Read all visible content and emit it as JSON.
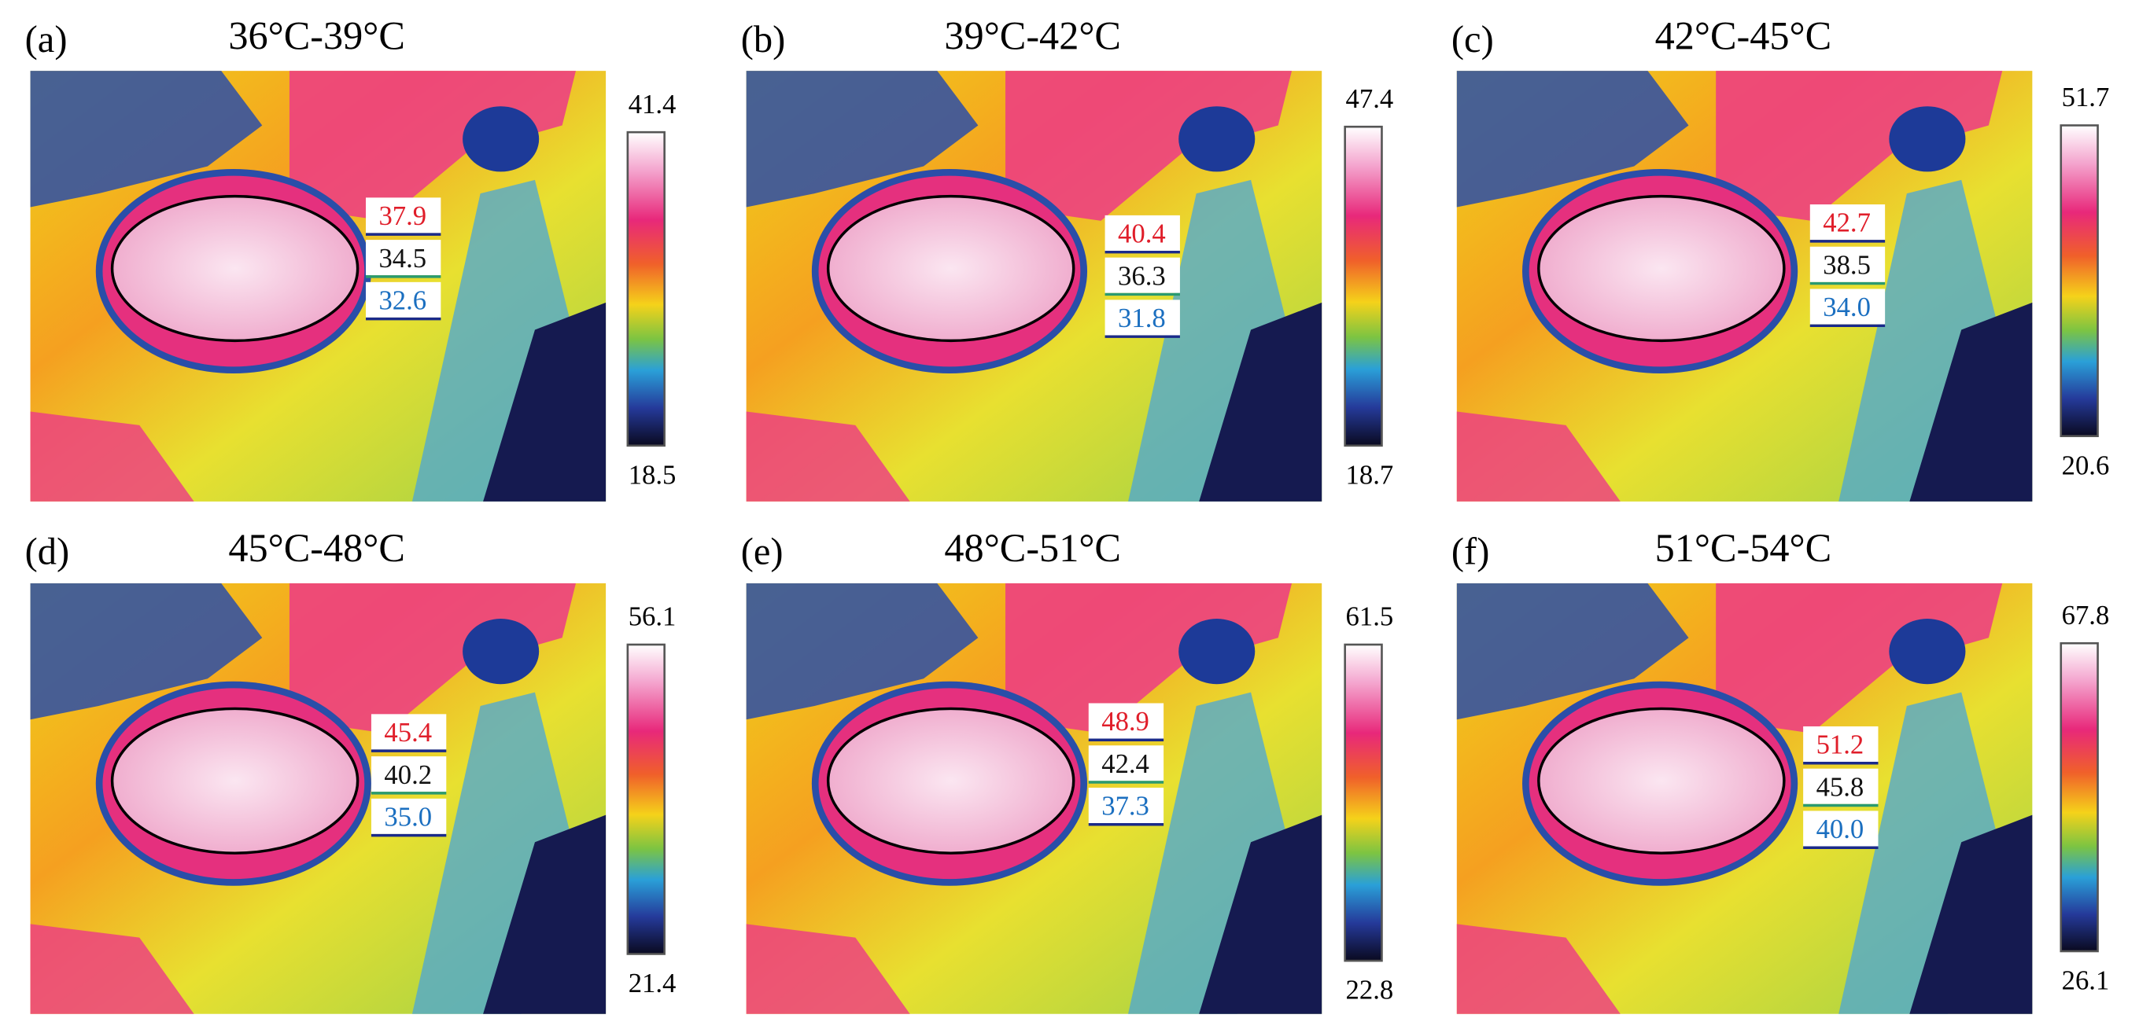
{
  "panels": [
    {
      "label": "(a)",
      "title": "36°C-39°C",
      "scale_max": "41.4",
      "scale_min": "18.5",
      "readings": [
        "37.9",
        "34.5",
        "32.6"
      ]
    },
    {
      "label": "(b)",
      "title": "39°C-42°C",
      "scale_max": "47.4",
      "scale_min": "18.7",
      "readings": [
        "40.4",
        "36.3",
        "31.8"
      ]
    },
    {
      "label": "(c)",
      "title": "42°C-45°C",
      "scale_max": "51.7",
      "scale_min": "20.6",
      "readings": [
        "42.7",
        "38.5",
        "34.0"
      ]
    },
    {
      "label": "(d)",
      "title": "45°C-48°C",
      "scale_max": "56.1",
      "scale_min": "21.4",
      "readings": [
        "45.4",
        "40.2",
        "35.0"
      ]
    },
    {
      "label": "(e)",
      "title": "48°C-51°C",
      "scale_max": "61.5",
      "scale_min": "22.8",
      "readings": [
        "48.9",
        "42.4",
        "37.3"
      ]
    },
    {
      "label": "(f)",
      "title": "51°C-54°C",
      "scale_max": "67.8",
      "scale_min": "26.1",
      "readings": [
        "51.2",
        "45.8",
        "40.0"
      ]
    }
  ]
}
